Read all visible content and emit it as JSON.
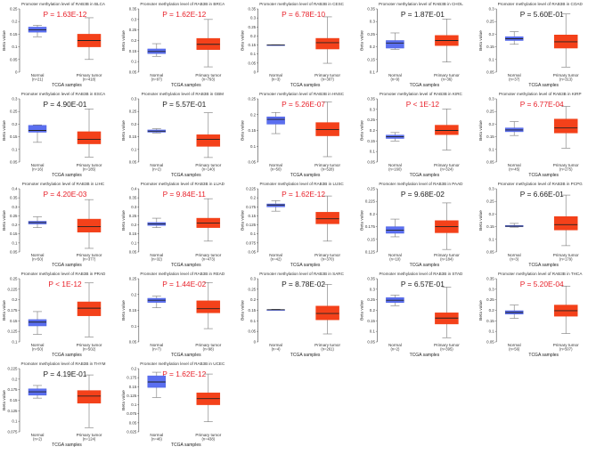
{
  "colors": {
    "normal": "#4a5ee0",
    "normal_fill": "#5b6ff0",
    "tumor": "#f03c14",
    "tumor_fill": "#f4411a",
    "p_sig": "#e8212a",
    "p_ns": "#222222"
  },
  "common": {
    "ylabel": "Beta value",
    "xlabel": "TCGA samples",
    "normal_label": "Normal",
    "tumor_label": "Primary tumor",
    "title_prefix": "Promoter methylation level of RAB3B in "
  },
  "chart_data": [
    {
      "type": "box",
      "cancer": "BLCA",
      "p": "P = 1.63E-12",
      "sig": true,
      "n_normal": "(n=21)",
      "n_tumor": "(n=418)",
      "ylim": [
        0,
        0.25
      ],
      "step": 0.05,
      "normal": [
        0.14,
        0.158,
        0.167,
        0.178,
        0.185
      ],
      "tumor": [
        0.05,
        0.1,
        0.125,
        0.15,
        0.215
      ]
    },
    {
      "type": "box",
      "cancer": "BRCA",
      "p": "P = 1.62E-12",
      "sig": true,
      "n_normal": "(n=97)",
      "n_tumor": "(n=793)",
      "ylim": [
        0.05,
        0.35
      ],
      "step": 0.05,
      "normal": [
        0.125,
        0.138,
        0.148,
        0.16,
        0.185
      ],
      "tumor": [
        0.075,
        0.157,
        0.182,
        0.21,
        0.3
      ]
    },
    {
      "type": "box",
      "cancer": "CESC",
      "p": "P = 6.78E-10",
      "sig": true,
      "n_normal": "(n=3)",
      "n_tumor": "(n=307)",
      "ylim": [
        0,
        0.35
      ],
      "step": 0.05,
      "normal": [
        0.148,
        0.149,
        0.15,
        0.151,
        0.152
      ],
      "tumor": [
        0.049,
        0.128,
        0.163,
        0.187,
        0.306
      ]
    },
    {
      "type": "box",
      "cancer": "CHOL",
      "p": "P = 1.87E-01",
      "sig": false,
      "n_normal": "(n=9)",
      "n_tumor": "(n=36)",
      "ylim": [
        0.1,
        0.35
      ],
      "step": 0.05,
      "normal": [
        0.19,
        0.195,
        0.215,
        0.225,
        0.255
      ],
      "tumor": [
        0.14,
        0.205,
        0.225,
        0.245,
        0.31
      ]
    },
    {
      "type": "box",
      "cancer": "COAD",
      "p": "P = 5.60E-01",
      "sig": false,
      "n_normal": "(n=37)",
      "n_tumor": "(n=313)",
      "ylim": [
        0.05,
        0.3
      ],
      "step": 0.05,
      "normal": [
        0.16,
        0.175,
        0.182,
        0.19,
        0.21
      ],
      "tumor": [
        0.07,
        0.145,
        0.17,
        0.197,
        0.28
      ]
    },
    {
      "type": "box",
      "cancer": "ESCA",
      "p": "P = 4.90E-01",
      "sig": false,
      "n_normal": "(n=16)",
      "n_tumor": "(n=185)",
      "ylim": [
        0.05,
        0.3
      ],
      "step": 0.05,
      "normal": [
        0.128,
        0.168,
        0.175,
        0.195,
        0.197
      ],
      "tumor": [
        0.07,
        0.122,
        0.14,
        0.17,
        0.26
      ]
    },
    {
      "type": "box",
      "cancer": "GBM",
      "p": "P = 5.57E-01",
      "sig": false,
      "n_normal": "(n=2)",
      "n_tumor": "(n=140)",
      "ylim": [
        0.05,
        0.3
      ],
      "step": 0.05,
      "normal": [
        0.165,
        0.168,
        0.172,
        0.177,
        0.182
      ],
      "tumor": [
        0.068,
        0.112,
        0.14,
        0.158,
        0.245
      ]
    },
    {
      "type": "box",
      "cancer": "HNSC",
      "p": "P = 5.26E-07",
      "sig": true,
      "n_normal": "(n=50)",
      "n_tumor": "(n=528)",
      "ylim": [
        0.05,
        0.25
      ],
      "step": 0.05,
      "normal": [
        0.14,
        0.17,
        0.185,
        0.193,
        0.207
      ],
      "tumor": [
        0.067,
        0.133,
        0.153,
        0.175,
        0.24
      ]
    },
    {
      "type": "box",
      "cancer": "KIRC",
      "p": "P < 1E-12",
      "sig": true,
      "n_normal": "(n=160)",
      "n_tumor": "(n=324)",
      "ylim": [
        0.05,
        0.35
      ],
      "step": 0.05,
      "normal": [
        0.15,
        0.162,
        0.17,
        0.178,
        0.19
      ],
      "tumor": [
        0.107,
        0.18,
        0.2,
        0.225,
        0.302
      ]
    },
    {
      "type": "box",
      "cancer": "KIRP",
      "p": "P = 6.77E-04",
      "sig": true,
      "n_normal": "(n=45)",
      "n_tumor": "(n=275)",
      "ylim": [
        0.05,
        0.3
      ],
      "step": 0.05,
      "normal": [
        0.155,
        0.17,
        0.177,
        0.185,
        0.21
      ],
      "tumor": [
        0.105,
        0.165,
        0.185,
        0.22,
        0.27
      ]
    },
    {
      "type": "box",
      "cancer": "LIHC",
      "p": "P = 4.20E-03",
      "sig": true,
      "n_normal": "(n=50)",
      "n_tumor": "(n=377)",
      "ylim": [
        0.05,
        0.4
      ],
      "step": 0.05,
      "normal": [
        0.185,
        0.205,
        0.213,
        0.22,
        0.245
      ],
      "tumor": [
        0.07,
        0.16,
        0.19,
        0.232,
        0.34
      ]
    },
    {
      "type": "box",
      "cancer": "LUAD",
      "p": "P = 9.84E-11",
      "sig": true,
      "n_normal": "(n=32)",
      "n_tumor": "(n=473)",
      "ylim": [
        0.05,
        0.4
      ],
      "step": 0.05,
      "normal": [
        0.185,
        0.197,
        0.205,
        0.213,
        0.237
      ],
      "tumor": [
        0.11,
        0.185,
        0.21,
        0.237,
        0.345
      ]
    },
    {
      "type": "box",
      "cancer": "LUSC",
      "p": "P = 1.62E-12",
      "sig": true,
      "n_normal": "(n=42)",
      "n_tumor": "(n=370)",
      "ylim": [
        0.05,
        0.225
      ],
      "step": 0.025,
      "normal": [
        0.163,
        0.175,
        0.18,
        0.183,
        0.192
      ],
      "tumor": [
        0.08,
        0.128,
        0.142,
        0.16,
        0.205
      ]
    },
    {
      "type": "box",
      "cancer": "PAAD",
      "p": "P = 9.68E-02",
      "sig": false,
      "n_normal": "(n=10)",
      "n_tumor": "(n=184)",
      "ylim": [
        0.125,
        0.25
      ],
      "step": 0.025,
      "normal": [
        0.155,
        0.162,
        0.168,
        0.175,
        0.19
      ],
      "tumor": [
        0.13,
        0.163,
        0.175,
        0.187,
        0.222
      ]
    },
    {
      "type": "box",
      "cancer": "PCPG",
      "p": "P = 6.66E-01",
      "sig": false,
      "n_normal": "(n=3)",
      "n_tumor": "(n=179)",
      "ylim": [
        0.05,
        0.3
      ],
      "step": 0.05,
      "normal": [
        0.148,
        0.15,
        0.152,
        0.155,
        0.163
      ],
      "tumor": [
        0.075,
        0.137,
        0.158,
        0.19,
        0.275
      ]
    },
    {
      "type": "box",
      "cancer": "PRAD",
      "p": "P < 1E-12",
      "sig": true,
      "n_normal": "(n=50)",
      "n_tumor": "(n=502)",
      "ylim": [
        0.1,
        0.25
      ],
      "step": 0.025,
      "normal": [
        0.118,
        0.138,
        0.147,
        0.153,
        0.172
      ],
      "tumor": [
        0.112,
        0.162,
        0.18,
        0.195,
        0.24
      ]
    },
    {
      "type": "box",
      "cancer": "READ",
      "p": "P = 1.44E-02",
      "sig": true,
      "n_normal": "(n=7)",
      "n_tumor": "(n=98)",
      "ylim": [
        0.05,
        0.25
      ],
      "step": 0.05,
      "normal": [
        0.158,
        0.175,
        0.182,
        0.188,
        0.195
      ],
      "tumor": [
        0.092,
        0.142,
        0.155,
        0.18,
        0.238
      ]
    },
    {
      "type": "box",
      "cancer": "SARC",
      "p": "P = 8.78E-02",
      "sig": false,
      "n_normal": "(n=4)",
      "n_tumor": "(n=261)",
      "ylim": [
        0,
        0.3
      ],
      "step": 0.05,
      "normal": [
        0.152,
        0.152,
        0.153,
        0.153,
        0.155
      ],
      "tumor": [
        0.038,
        0.105,
        0.135,
        0.17,
        0.273
      ]
    },
    {
      "type": "box",
      "cancer": "STAD",
      "p": "P = 6.57E-01",
      "sig": false,
      "n_normal": "(n=2)",
      "n_tumor": "(n=395)",
      "ylim": [
        0.05,
        0.35
      ],
      "step": 0.05,
      "normal": [
        0.222,
        0.237,
        0.248,
        0.26,
        0.272
      ],
      "tumor": [
        0.07,
        0.135,
        0.163,
        0.188,
        0.31
      ]
    },
    {
      "type": "box",
      "cancer": "THCA",
      "p": "P = 5.20E-04",
      "sig": true,
      "n_normal": "(n=56)",
      "n_tumor": "(n=507)",
      "ylim": [
        0.05,
        0.35
      ],
      "step": 0.05,
      "normal": [
        0.162,
        0.182,
        0.19,
        0.198,
        0.225
      ],
      "tumor": [
        0.09,
        0.172,
        0.198,
        0.225,
        0.315
      ]
    },
    {
      "type": "box",
      "cancer": "THYM",
      "p": "P = 4.19E-01",
      "sig": false,
      "n_normal": "(n=2)",
      "n_tumor": "(n=124)",
      "ylim": [
        0.075,
        0.225
      ],
      "step": 0.025,
      "normal": [
        0.155,
        0.162,
        0.17,
        0.177,
        0.185
      ],
      "tumor": [
        0.085,
        0.143,
        0.16,
        0.173,
        0.21
      ]
    },
    {
      "type": "box",
      "cancer": "UCEC",
      "p": "P = 1.62E-12",
      "sig": true,
      "n_normal": "(n=46)",
      "n_tumor": "(n=438)",
      "ylim": [
        0.025,
        0.2
      ],
      "step": 0.025,
      "normal": [
        0.12,
        0.148,
        0.163,
        0.18,
        0.19
      ],
      "tumor": [
        0.053,
        0.1,
        0.117,
        0.133,
        0.185
      ]
    }
  ]
}
